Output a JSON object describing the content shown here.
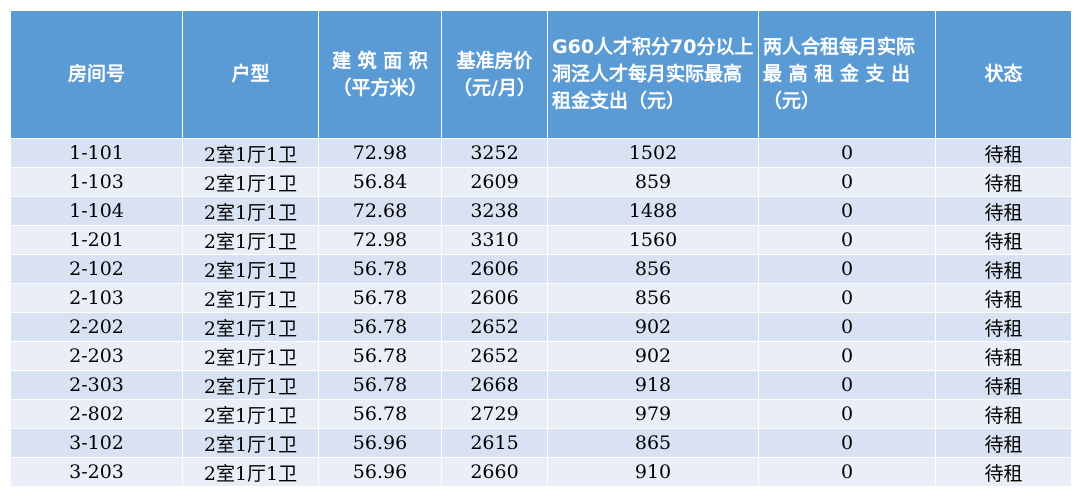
{
  "header": {
    "room": "房间号",
    "type": "户型",
    "area": "建 筑 面 积（平方米）",
    "base_rent": "基准房价（元/月）",
    "talent_single": "G60人才积分70分以上洞泾人才每月实际最高租金支出（元）",
    "talent_shared": "两人合租每月实际最 高 租 金 支 出（元）",
    "status": "状态"
  },
  "rows": [
    {
      "room": "1-101",
      "type": "2室1厅1卫",
      "area": "72.98",
      "base_rent": "3252",
      "talent_single": "1502",
      "talent_shared": "0",
      "status": "待租"
    },
    {
      "room": "1-103",
      "type": "2室1厅1卫",
      "area": "56.84",
      "base_rent": "2609",
      "talent_single": "859",
      "talent_shared": "0",
      "status": "待租"
    },
    {
      "room": "1-104",
      "type": "2室1厅1卫",
      "area": "72.68",
      "base_rent": "3238",
      "talent_single": "1488",
      "talent_shared": "0",
      "status": "待租"
    },
    {
      "room": "1-201",
      "type": "2室1厅1卫",
      "area": "72.98",
      "base_rent": "3310",
      "talent_single": "1560",
      "talent_shared": "0",
      "status": "待租"
    },
    {
      "room": "2-102",
      "type": "2室1厅1卫",
      "area": "56.78",
      "base_rent": "2606",
      "talent_single": "856",
      "talent_shared": "0",
      "status": "待租"
    },
    {
      "room": "2-103",
      "type": "2室1厅1卫",
      "area": "56.78",
      "base_rent": "2606",
      "talent_single": "856",
      "talent_shared": "0",
      "status": "待租"
    },
    {
      "room": "2-202",
      "type": "2室1厅1卫",
      "area": "56.78",
      "base_rent": "2652",
      "talent_single": "902",
      "talent_shared": "0",
      "status": "待租"
    },
    {
      "room": "2-203",
      "type": "2室1厅1卫",
      "area": "56.78",
      "base_rent": "2652",
      "talent_single": "902",
      "talent_shared": "0",
      "status": "待租"
    },
    {
      "room": "2-303",
      "type": "2室1厅1卫",
      "area": "56.78",
      "base_rent": "2668",
      "talent_single": "918",
      "talent_shared": "0",
      "status": "待租"
    },
    {
      "room": "2-802",
      "type": "2室1厅1卫",
      "area": "56.78",
      "base_rent": "2729",
      "talent_single": "979",
      "talent_shared": "0",
      "status": "待租"
    },
    {
      "room": "3-102",
      "type": "2室1厅1卫",
      "area": "56.96",
      "base_rent": "2615",
      "talent_single": "865",
      "talent_shared": "0",
      "status": "待租"
    },
    {
      "room": "3-203",
      "type": "2室1厅1卫",
      "area": "56.96",
      "base_rent": "2660",
      "talent_single": "910",
      "talent_shared": "0",
      "status": "待租"
    }
  ]
}
